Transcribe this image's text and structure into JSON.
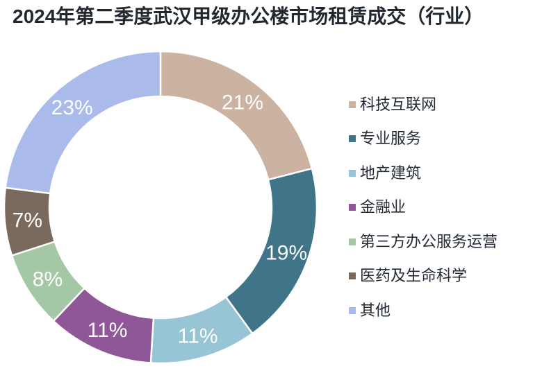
{
  "page": {
    "background": "#FFFFFF"
  },
  "header": {
    "title": "2024年第二季度武汉甲级办公楼市场租赁成交（行业）",
    "color": "#21282F"
  },
  "legend": {
    "text_color": "#222B35"
  },
  "chart_data": {
    "type": "pie",
    "variant": "donut",
    "title": "2024年第二季度武汉甲级办公楼市场租赁成交（行业）",
    "unit": "percent",
    "start_angle_deg": 0,
    "direction": "clockwise",
    "inner_radius_ratio": 0.71,
    "label_color": "#FFFFFF",
    "separator_color": "#FFFFFF",
    "legend_position": "right",
    "series": [
      {
        "label": "科技互联网",
        "value": 21,
        "display": "21%",
        "color": "#CBB2A1"
      },
      {
        "label": "专业服务",
        "value": 19,
        "display": "19%",
        "color": "#3F7489"
      },
      {
        "label": "地产建筑",
        "value": 11,
        "display": "11%",
        "color": "#98C5D6"
      },
      {
        "label": "金融业",
        "value": 11,
        "display": "11%",
        "color": "#8F5797"
      },
      {
        "label": "第三方办公服务运营",
        "value": 8,
        "display": "8%",
        "color": "#A4C8A5"
      },
      {
        "label": "医药及生命科学",
        "value": 7,
        "display": "7%",
        "color": "#7A6A5E"
      },
      {
        "label": "其他",
        "value": 23,
        "display": "23%",
        "color": "#AABAEB"
      }
    ]
  }
}
